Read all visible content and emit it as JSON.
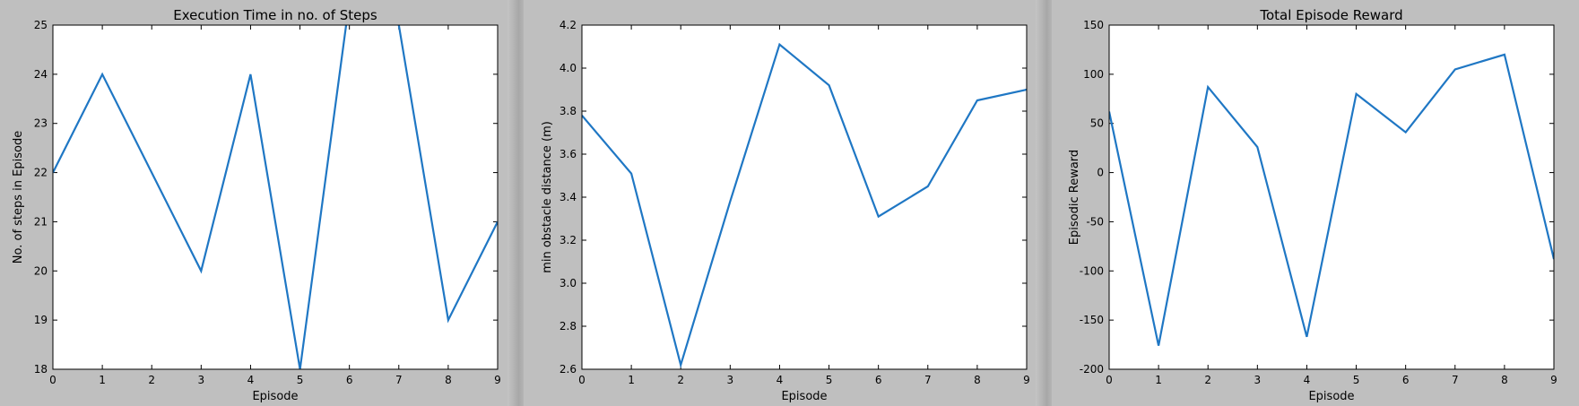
{
  "chart_data": [
    {
      "type": "line",
      "title": "Execution Time in no. of Steps",
      "xlabel": "Episode",
      "ylabel": "No. of steps in Episode",
      "xlim": [
        0,
        9
      ],
      "ylim": [
        18,
        25
      ],
      "xticks": [
        "0",
        "1",
        "2",
        "3",
        "4",
        "5",
        "6",
        "7",
        "8",
        "9"
      ],
      "yticks": [
        "18",
        "19",
        "20",
        "21",
        "22",
        "23",
        "24",
        "25"
      ],
      "series": [
        {
          "x": [
            0,
            1,
            2,
            3,
            4,
            5,
            6,
            7,
            8,
            9
          ],
          "y": [
            22,
            24,
            22,
            20,
            24,
            18,
            25.5,
            25,
            19,
            21
          ]
        }
      ],
      "grid": false,
      "color": "#1f77c4"
    },
    {
      "type": "line",
      "title": "",
      "xlabel": "Episode",
      "ylabel": "min obstacle distance (m)",
      "xlim": [
        0,
        9
      ],
      "ylim": [
        2.6,
        4.2
      ],
      "xticks": [
        "0",
        "1",
        "2",
        "3",
        "4",
        "5",
        "6",
        "7",
        "8",
        "9"
      ],
      "yticks": [
        "2.6",
        "2.8",
        "3.0",
        "3.2",
        "3.4",
        "3.6",
        "3.8",
        "4.0",
        "4.2"
      ],
      "series": [
        {
          "x": [
            0,
            1,
            2,
            3,
            4,
            5,
            6,
            7,
            8,
            9
          ],
          "y": [
            3.78,
            3.51,
            2.62,
            3.38,
            4.11,
            3.92,
            3.31,
            3.45,
            3.85,
            3.9
          ]
        }
      ],
      "grid": false,
      "color": "#1f77c4"
    },
    {
      "type": "line",
      "title": "Total Episode Reward",
      "xlabel": "Episode",
      "ylabel": "Episodic Reward",
      "xlim": [
        0,
        9
      ],
      "ylim": [
        -200,
        150
      ],
      "xticks": [
        "0",
        "1",
        "2",
        "3",
        "4",
        "5",
        "6",
        "7",
        "8",
        "9"
      ],
      "yticks": [
        "-200",
        "-150",
        "-100",
        "-50",
        "0",
        "50",
        "100",
        "150"
      ],
      "series": [
        {
          "x": [
            0,
            1,
            2,
            3,
            4,
            5,
            6,
            7,
            8,
            9
          ],
          "y": [
            62,
            -176,
            87,
            26,
            -167,
            80,
            41,
            105,
            120,
            -88
          ]
        }
      ],
      "grid": false,
      "color": "#1f77c4"
    }
  ]
}
